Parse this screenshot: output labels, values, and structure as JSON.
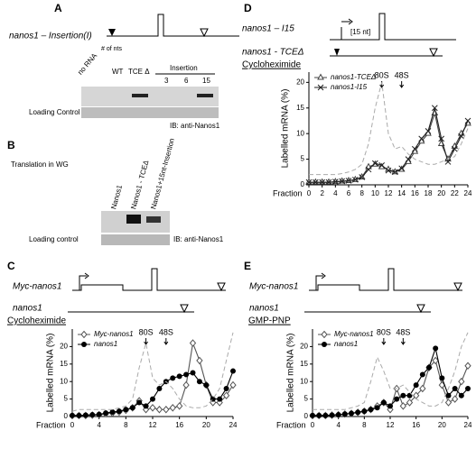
{
  "panels": {
    "A": {
      "letter": "A",
      "construct": "nanos1 – Insertion(I)",
      "nts": "# of nts",
      "lanes": [
        "no RNA",
        "WT",
        "TCE Δ"
      ],
      "insertion": "Insertion",
      "sizes": [
        "3",
        "6",
        "15"
      ],
      "loading": "Loading Control",
      "ib": "IB: anti-Nanos1"
    },
    "B": {
      "letter": "B",
      "title": "Translation in WG",
      "lanes": [
        "Nanos1",
        "Nanos1 - TCEΔ",
        "Nanos1+15nt-Insertion"
      ],
      "loading": "Loading control",
      "ib": "IB: anti-Nanos1"
    }
  },
  "chart_data": [
    {
      "type": "line",
      "panel": "D",
      "constructs": [
        "nanos1 – I15",
        "[15 nt]",
        "nanos1 - TCEΔ"
      ],
      "condition": "Cycloheximide",
      "annotations": [
        "80S",
        "48S"
      ],
      "ylabel": "Labelled mRNA (%)",
      "xlabel": "Fraction",
      "x": [
        0,
        1,
        2,
        3,
        4,
        5,
        6,
        7,
        8,
        9,
        10,
        11,
        12,
        13,
        14,
        15,
        16,
        17,
        18,
        19,
        20,
        21,
        22,
        23,
        24
      ],
      "xlim": [
        0,
        24
      ],
      "xticks": [
        0,
        2,
        4,
        6,
        8,
        10,
        12,
        14,
        16,
        18,
        20,
        22,
        24
      ],
      "ylim": [
        0,
        22
      ],
      "yticks": [
        0,
        5,
        10,
        15,
        20
      ],
      "series": [
        {
          "name": "nanos1-TCEΔ",
          "color": "#444444",
          "marker": "triangle",
          "values": [
            0.5,
            0.5,
            0.5,
            0.5,
            0.6,
            0.7,
            0.8,
            1,
            1.5,
            3.5,
            4,
            3.5,
            3,
            2.5,
            3,
            4.5,
            6.5,
            8.5,
            10,
            14,
            8,
            5,
            7.5,
            10,
            12
          ]
        },
        {
          "name": "nanos1-I15",
          "color": "#222222",
          "marker": "x",
          "values": [
            0.5,
            0.5,
            0.5,
            0.5,
            0.6,
            0.7,
            0.8,
            1,
            1.5,
            3,
            4.2,
            3.8,
            2.8,
            2.5,
            3.2,
            5,
            7,
            9,
            10.5,
            15,
            9,
            4.5,
            7,
            9.5,
            12.5
          ]
        },
        {
          "color": "#aaaaaa",
          "dash": true,
          "values": [
            2,
            2,
            2,
            2,
            2,
            2.2,
            2.5,
            3,
            4,
            8,
            15,
            20,
            10,
            7,
            7.5,
            6,
            5,
            4.5,
            4,
            4,
            4.5,
            5,
            5.5,
            8,
            11
          ]
        }
      ]
    },
    {
      "type": "line",
      "panel": "C",
      "constructs": [
        "Myc-nanos1",
        "nanos1"
      ],
      "condition": "Cycloheximide",
      "annotations": [
        "80S",
        "48S"
      ],
      "ylabel": "Labelled mRNA (%)",
      "xlabel": "Fraction",
      "x": [
        0,
        1,
        2,
        3,
        4,
        5,
        6,
        7,
        8,
        9,
        10,
        11,
        12,
        13,
        14,
        15,
        16,
        17,
        18,
        19,
        20,
        21,
        22,
        23,
        24
      ],
      "xlim": [
        0,
        24
      ],
      "xticks": [
        0,
        4,
        8,
        12,
        16,
        20,
        24
      ],
      "ylim": [
        0,
        25
      ],
      "yticks": [
        0,
        5,
        10,
        15,
        20
      ],
      "series": [
        {
          "name": "Myc-nanos1",
          "color": "#555555",
          "marker": "diamond",
          "values": [
            0.3,
            0.3,
            0.3,
            0.4,
            0.5,
            0.8,
            1,
            1.3,
            1.8,
            2.5,
            4.5,
            2,
            2.5,
            2,
            2,
            2.5,
            3,
            9,
            21,
            16,
            9,
            4,
            4,
            6,
            9
          ]
        },
        {
          "name": "nanos1",
          "color": "#000000",
          "marker": "circle",
          "values": [
            0.3,
            0.3,
            0.4,
            0.5,
            0.6,
            1,
            1.3,
            1.5,
            2,
            2.5,
            4,
            3,
            5,
            8,
            10,
            11,
            11.5,
            12,
            12.5,
            10,
            9,
            5,
            5,
            8,
            13
          ]
        },
        {
          "color": "#aaaaaa",
          "dash": true,
          "values": [
            1.5,
            2,
            2,
            2,
            2,
            2,
            2,
            2.5,
            3,
            5,
            14,
            21,
            11,
            9,
            10,
            8,
            5,
            3,
            2.5,
            2.5,
            3,
            5,
            8,
            16,
            24
          ]
        }
      ]
    },
    {
      "type": "line",
      "panel": "E",
      "constructs": [
        "Myc-nanos1",
        "nanos1"
      ],
      "condition": "GMP-PNP",
      "annotations": [
        "80S",
        "48S"
      ],
      "ylabel": "Labelled mRNA (%)",
      "xlabel": "Fraction",
      "x": [
        0,
        1,
        2,
        3,
        4,
        5,
        6,
        7,
        8,
        9,
        10,
        11,
        12,
        13,
        14,
        15,
        16,
        17,
        18,
        19,
        20,
        21,
        22,
        23,
        24
      ],
      "xlim": [
        0,
        24
      ],
      "xticks": [
        0,
        4,
        8,
        12,
        16,
        20,
        24
      ],
      "ylim": [
        0,
        25
      ],
      "yticks": [
        0,
        5,
        10,
        15,
        20
      ],
      "series": [
        {
          "name": "Myc-nanos1",
          "color": "#555555",
          "marker": "diamond",
          "values": [
            0.3,
            0.3,
            0.3,
            0.4,
            0.5,
            0.7,
            0.9,
            1.2,
            1.5,
            2,
            3,
            4,
            2,
            8,
            3,
            4,
            6,
            8,
            14,
            16,
            9,
            4,
            5,
            10,
            14.5
          ]
        },
        {
          "name": "nanos1",
          "color": "#000000",
          "marker": "circle",
          "values": [
            0.3,
            0.3,
            0.3,
            0.4,
            0.5,
            0.7,
            0.9,
            1.2,
            1.5,
            2,
            2.5,
            4,
            3,
            5,
            6,
            6,
            9,
            12,
            14,
            19.5,
            11,
            6,
            8,
            6,
            8
          ]
        },
        {
          "color": "#aaaaaa",
          "dash": true,
          "values": [
            2,
            2,
            2,
            2,
            2,
            2,
            2.5,
            3,
            4,
            10,
            17,
            13,
            8,
            8,
            9,
            7,
            5,
            4,
            3,
            3,
            4,
            8,
            13,
            20,
            24
          ]
        }
      ]
    }
  ]
}
